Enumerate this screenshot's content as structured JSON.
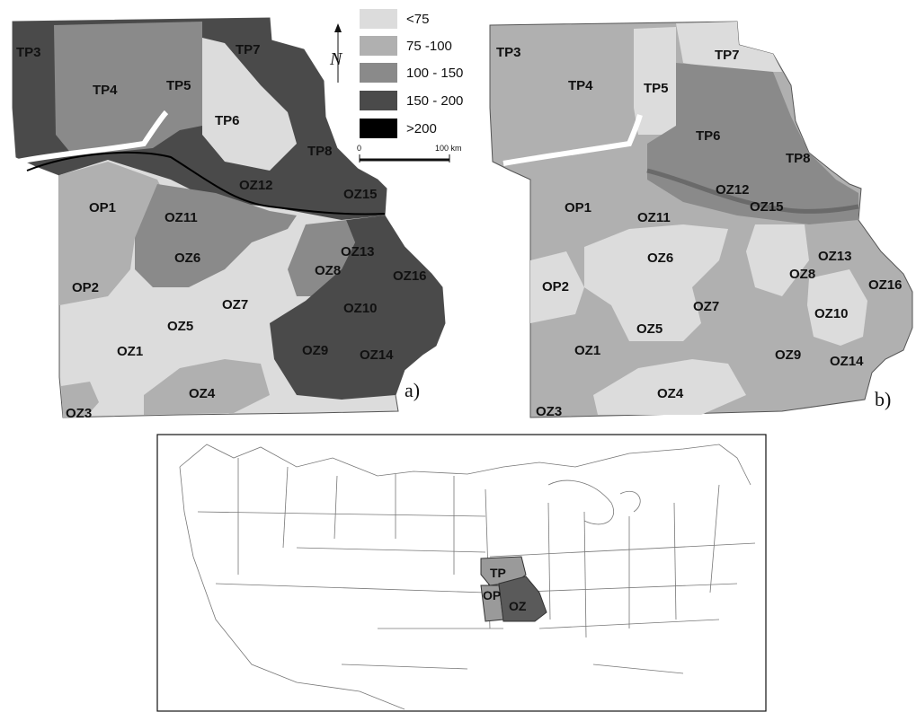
{
  "map_a": {
    "panel_label": "a)",
    "labels": [
      "TP3",
      "TP4",
      "TP5",
      "TP7",
      "TP6",
      "TP8",
      "OZ12",
      "OZ15",
      "OP1",
      "OZ11",
      "OZ6",
      "OZ13",
      "OZ8",
      "OZ16",
      "OP2",
      "OZ7",
      "OZ10",
      "OZ5",
      "OZ1",
      "OZ9",
      "OZ14",
      "OZ4",
      "OZ3"
    ]
  },
  "map_b": {
    "panel_label": "b)",
    "labels": [
      "TP3",
      "TP4",
      "TP5",
      "TP7",
      "TP6",
      "TP8",
      "OZ12",
      "OZ15",
      "OP1",
      "OZ11",
      "OZ6",
      "OZ13",
      "OZ8",
      "OP2",
      "OZ16",
      "OZ7",
      "OZ10",
      "OZ5",
      "OZ1",
      "OZ9",
      "OZ14",
      "OZ4",
      "OZ3"
    ]
  },
  "legend": {
    "items": [
      {
        "label": "<75",
        "color": "#dcdcdc"
      },
      {
        "label": "75 -100",
        "color": "#b0b0b0"
      },
      {
        "label": "100 - 150",
        "color": "#8a8a8a"
      },
      {
        "label": "150 - 200",
        "color": "#4a4a4a"
      },
      {
        "label": ">200",
        "color": "#000000"
      }
    ]
  },
  "north_arrow": {
    "label": "N"
  },
  "scale_bar": {
    "start": "0",
    "end": "100 km"
  },
  "inset": {
    "labels": [
      "TP",
      "OP",
      "OZ"
    ],
    "highlight_colors": {
      "TP": "#9a9a9a",
      "OP": "#9a9a9a",
      "OZ": "#5a5a5a"
    }
  }
}
